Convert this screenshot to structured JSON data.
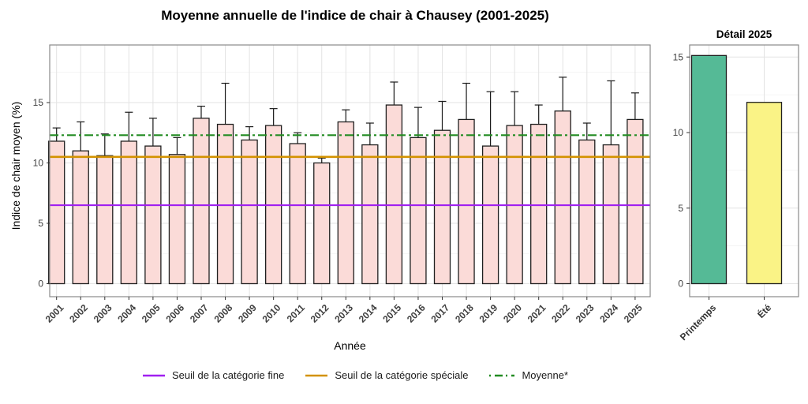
{
  "title": "Moyenne annuelle de l'indice de chair à Chausey (2001-2025)",
  "legend": {
    "items": [
      {
        "label": "Seuil de la catégorie fine",
        "color": "#A020F0",
        "style": "solid"
      },
      {
        "label": "Seuil de la catégorie spéciale",
        "color": "#D39200",
        "style": "solid"
      },
      {
        "label": "Moyenne*",
        "color": "#228B22",
        "style": "dashdot"
      }
    ]
  },
  "chart_data": [
    {
      "type": "bar",
      "title": "Moyenne annuelle de l'indice de chair à Chausey (2001-2025)",
      "xlabel": "Année",
      "ylabel": "Indice de chair moyen (%)",
      "categories": [
        "2001",
        "2002",
        "2003",
        "2004",
        "2005",
        "2006",
        "2007",
        "2008",
        "2009",
        "2010",
        "2011",
        "2012",
        "2013",
        "2014",
        "2015",
        "2016",
        "2017",
        "2018",
        "2019",
        "2020",
        "2021",
        "2022",
        "2023",
        "2024",
        "2025"
      ],
      "values": [
        11.8,
        11.0,
        10.6,
        11.8,
        11.4,
        10.7,
        13.7,
        13.2,
        11.9,
        13.1,
        11.6,
        10.0,
        13.4,
        11.5,
        14.8,
        12.1,
        12.7,
        13.6,
        11.4,
        13.1,
        13.2,
        14.3,
        11.9,
        11.5,
        13.6
      ],
      "error_high": [
        12.9,
        13.4,
        12.4,
        14.2,
        13.7,
        12.1,
        14.7,
        16.6,
        13.0,
        14.5,
        12.5,
        10.4,
        14.4,
        13.3,
        16.7,
        14.6,
        15.1,
        16.6,
        15.9,
        15.9,
        14.8,
        17.1,
        13.3,
        16.8,
        15.8
      ],
      "yticks": [
        0,
        5,
        10,
        15
      ],
      "yticks_minor": [
        2.5,
        7.5,
        12.5,
        17.5
      ],
      "ylim": [
        0,
        19.8
      ],
      "grid": true,
      "legend_position": "bottom",
      "bar_fill": "#FBDBD8",
      "bar_stroke": "#1F1F1F",
      "reference_lines": [
        {
          "name": "seuil-fine",
          "label": "Seuil de la catégorie fine",
          "value": 6.5,
          "color": "#A020F0",
          "style": "solid"
        },
        {
          "name": "seuil-speciale",
          "label": "Seuil de la catégorie spéciale",
          "value": 10.5,
          "color": "#D39200",
          "style": "solid"
        },
        {
          "name": "moyenne",
          "label": "Moyenne*",
          "value": 12.3,
          "color": "#228B22",
          "style": "dashdot"
        }
      ]
    },
    {
      "type": "bar",
      "title": "Détail 2025",
      "xlabel": "",
      "ylabel": "",
      "categories": [
        "Printemps",
        "Été"
      ],
      "values": [
        15.1,
        12.0
      ],
      "bar_colors": [
        "#55BA96",
        "#FAF386"
      ],
      "bar_stroke": "#1F1F1F",
      "yticks": [
        0,
        5,
        10,
        15
      ],
      "yticks_minor": [
        2.5,
        7.5,
        12.5
      ],
      "ylim": [
        0,
        15.8
      ],
      "grid": true
    }
  ]
}
